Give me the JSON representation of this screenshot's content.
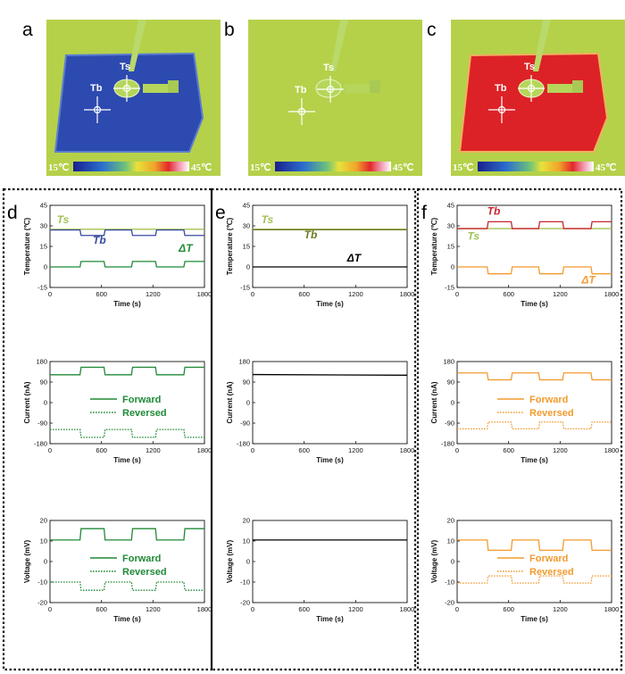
{
  "figure": {
    "top_panels": [
      {
        "letter": "a",
        "state": "cold",
        "ts_label": "Ts",
        "tb_label": "Tb",
        "cb_min": "15℃",
        "cb_max": "45℃"
      },
      {
        "letter": "b",
        "state": "neutral",
        "ts_label": "Ts",
        "tb_label": "Tb",
        "cb_min": "15℃",
        "cb_max": "45℃"
      },
      {
        "letter": "c",
        "state": "hot",
        "ts_label": "Ts",
        "tb_label": "Tb",
        "cb_min": "15℃",
        "cb_max": "45℃"
      }
    ],
    "columns": [
      {
        "letter": "d"
      },
      {
        "letter": "e"
      },
      {
        "letter": "f"
      }
    ],
    "colors": {
      "background_green": "#b5d14a",
      "cold_blue": "#2d4ab0",
      "hot_red": "#dc2226",
      "ts_line": "#a3c254",
      "tb_d": "#3849a1",
      "tb_f": "#c8252c",
      "green_dark": "#1f8a37",
      "orange": "#f29b2f",
      "olive": "#6f7a25"
    }
  },
  "chart_data": [
    {
      "id": "d-temp",
      "type": "line",
      "xlabel": "Time (s)",
      "ylabel": "Temperature (℃)",
      "xlim": [
        0,
        1800
      ],
      "ylim": [
        -15,
        45
      ],
      "xticks": [
        0,
        600,
        1200,
        1800
      ],
      "yticks": [
        -15,
        0,
        15,
        30,
        45
      ],
      "series": [
        {
          "name": "Ts",
          "color": "#a3c254",
          "values": [
            [
              0,
              27.5
            ],
            [
              1800,
              27.5
            ]
          ]
        },
        {
          "name": "Tb",
          "color": "#3849a1",
          "pattern": {
            "high": 27,
            "low": 23,
            "periods": [
              [
                0,
                350,
                "high"
              ],
              [
                350,
                630,
                "low"
              ],
              [
                630,
                950,
                "high"
              ],
              [
                950,
                1230,
                "low"
              ],
              [
                1230,
                1560,
                "high"
              ],
              [
                1560,
                1800,
                "low"
              ]
            ]
          }
        },
        {
          "name": "ΔT",
          "color": "#1f8a37",
          "pattern": {
            "high": 4,
            "low": 0,
            "periods": [
              [
                0,
                350,
                "low"
              ],
              [
                350,
                630,
                "high"
              ],
              [
                630,
                950,
                "low"
              ],
              [
                950,
                1230,
                "high"
              ],
              [
                1230,
                1560,
                "low"
              ],
              [
                1560,
                1800,
                "high"
              ]
            ]
          }
        }
      ],
      "annotations": [
        {
          "text": "Ts",
          "x": 80,
          "y": 32,
          "color": "#a3c254"
        },
        {
          "text": "Tb",
          "x": 500,
          "y": 17,
          "color": "#3849a1"
        },
        {
          "text": "ΔT",
          "x": 1500,
          "y": 11,
          "color": "#1f8a37"
        }
      ]
    },
    {
      "id": "d-current",
      "type": "line",
      "xlabel": "Time (s)",
      "ylabel": "Current (nA)",
      "xlim": [
        0,
        1800
      ],
      "ylim": [
        -180,
        180
      ],
      "xticks": [
        0,
        600,
        1200,
        1800
      ],
      "yticks": [
        -180,
        -90,
        0,
        90,
        180
      ],
      "series": [
        {
          "name": "Forward",
          "color": "#1f8a37",
          "dash": "solid",
          "pattern": {
            "high": 155,
            "low": 122,
            "periods": [
              [
                0,
                350,
                "low"
              ],
              [
                350,
                630,
                "high"
              ],
              [
                630,
                950,
                "low"
              ],
              [
                950,
                1230,
                "high"
              ],
              [
                1230,
                1560,
                "low"
              ],
              [
                1560,
                1800,
                "high"
              ]
            ]
          }
        },
        {
          "name": "Reversed",
          "color": "#1f8a37",
          "dash": "dotted",
          "pattern": {
            "high": -118,
            "low": -152,
            "periods": [
              [
                0,
                350,
                "high"
              ],
              [
                350,
                630,
                "low"
              ],
              [
                630,
                950,
                "high"
              ],
              [
                950,
                1230,
                "low"
              ],
              [
                1230,
                1560,
                "high"
              ],
              [
                1560,
                1800,
                "low"
              ]
            ]
          }
        }
      ],
      "legend": [
        "Forward",
        "Reversed"
      ]
    },
    {
      "id": "d-voltage",
      "type": "line",
      "xlabel": "Time (s)",
      "ylabel": "Voltage (mV)",
      "xlim": [
        0,
        1800
      ],
      "ylim": [
        -20,
        20
      ],
      "xticks": [
        0,
        600,
        1200,
        1800
      ],
      "yticks": [
        -20,
        -10,
        0,
        10,
        20
      ],
      "series": [
        {
          "name": "Forward",
          "color": "#1f8a37",
          "dash": "solid",
          "pattern": {
            "high": 16,
            "low": 10.5,
            "periods": [
              [
                0,
                350,
                "low"
              ],
              [
                350,
                630,
                "high"
              ],
              [
                630,
                950,
                "low"
              ],
              [
                950,
                1230,
                "high"
              ],
              [
                1230,
                1560,
                "low"
              ],
              [
                1560,
                1800,
                "high"
              ]
            ]
          }
        },
        {
          "name": "Reversed",
          "color": "#1f8a37",
          "dash": "dotted",
          "pattern": {
            "high": -10,
            "low": -14,
            "periods": [
              [
                0,
                350,
                "high"
              ],
              [
                350,
                630,
                "low"
              ],
              [
                630,
                950,
                "high"
              ],
              [
                950,
                1230,
                "low"
              ],
              [
                1230,
                1560,
                "high"
              ],
              [
                1560,
                1800,
                "low"
              ]
            ]
          }
        }
      ],
      "legend": [
        "Forward",
        "Reversed"
      ]
    },
    {
      "id": "e-temp",
      "type": "line",
      "xlabel": "Time (s)",
      "ylabel": "Temperature (℃)",
      "xlim": [
        0,
        1800
      ],
      "ylim": [
        -15,
        45
      ],
      "xticks": [
        0,
        600,
        1200,
        1800
      ],
      "yticks": [
        -15,
        0,
        15,
        30,
        45
      ],
      "series": [
        {
          "name": "Ts",
          "color": "#a3c254",
          "values": [
            [
              0,
              27.5
            ],
            [
              1800,
              27.5
            ]
          ]
        },
        {
          "name": "Tb",
          "color": "#6f7a25",
          "values": [
            [
              0,
              27.2
            ],
            [
              1800,
              27.2
            ]
          ]
        },
        {
          "name": "ΔT",
          "color": "#000000",
          "values": [
            [
              0,
              0
            ],
            [
              1800,
              0
            ]
          ]
        }
      ],
      "annotations": [
        {
          "text": "Ts",
          "x": 100,
          "y": 32,
          "color": "#a3c254"
        },
        {
          "text": "Tb",
          "x": 600,
          "y": 21,
          "color": "#6f7a25"
        },
        {
          "text": "ΔT",
          "x": 1100,
          "y": 4,
          "color": "#000000"
        }
      ]
    },
    {
      "id": "e-current",
      "type": "line",
      "xlabel": "Time (s)",
      "ylabel": "Current (nA)",
      "xlim": [
        0,
        1800
      ],
      "ylim": [
        -180,
        180
      ],
      "xticks": [
        0,
        600,
        1200,
        1800
      ],
      "yticks": [
        -180,
        -90,
        0,
        90,
        180
      ],
      "series": [
        {
          "name": "Current",
          "color": "#000000",
          "values": [
            [
              0,
              123
            ],
            [
              1800,
              120
            ]
          ]
        }
      ]
    },
    {
      "id": "e-voltage",
      "type": "line",
      "xlabel": "Time (s)",
      "ylabel": "Voltage (mV)",
      "xlim": [
        0,
        1800
      ],
      "ylim": [
        -20,
        20
      ],
      "xticks": [
        0,
        600,
        1200,
        1800
      ],
      "yticks": [
        -20,
        -10,
        0,
        10,
        20
      ],
      "series": [
        {
          "name": "Voltage",
          "color": "#000000",
          "values": [
            [
              0,
              10.5
            ],
            [
              1800,
              10.5
            ]
          ]
        }
      ]
    },
    {
      "id": "f-temp",
      "type": "line",
      "xlabel": "Time (s)",
      "ylabel": "Temperature (℃)",
      "xlim": [
        0,
        1800
      ],
      "ylim": [
        -15,
        45
      ],
      "xticks": [
        0,
        600,
        1200,
        1800
      ],
      "yticks": [
        -15,
        0,
        15,
        30,
        45
      ],
      "series": [
        {
          "name": "Ts",
          "color": "#a3c254",
          "values": [
            [
              0,
              28
            ],
            [
              1800,
              28
            ]
          ]
        },
        {
          "name": "Tb",
          "color": "#c8252c",
          "pattern": {
            "high": 33,
            "low": 28,
            "periods": [
              [
                0,
                350,
                "low"
              ],
              [
                350,
                630,
                "high"
              ],
              [
                630,
                950,
                "low"
              ],
              [
                950,
                1230,
                "high"
              ],
              [
                1230,
                1560,
                "low"
              ],
              [
                1560,
                1800,
                "high"
              ]
            ]
          }
        },
        {
          "name": "ΔT",
          "color": "#f29b2f",
          "pattern": {
            "high": 0,
            "low": -5,
            "periods": [
              [
                0,
                350,
                "high"
              ],
              [
                350,
                630,
                "low"
              ],
              [
                630,
                950,
                "high"
              ],
              [
                950,
                1230,
                "low"
              ],
              [
                1230,
                1560,
                "high"
              ],
              [
                1560,
                1800,
                "low"
              ]
            ]
          }
        }
      ],
      "annotations": [
        {
          "text": "Tb",
          "x": 350,
          "y": 38,
          "color": "#c8252c"
        },
        {
          "text": "Ts",
          "x": 120,
          "y": 20,
          "color": "#a3c254"
        },
        {
          "text": "ΔT",
          "x": 1450,
          "y": -12,
          "color": "#f29b2f"
        }
      ]
    },
    {
      "id": "f-current",
      "type": "line",
      "xlabel": "Time (s)",
      "ylabel": "Current (nA)",
      "xlim": [
        0,
        1800
      ],
      "ylim": [
        -180,
        180
      ],
      "xticks": [
        0,
        600,
        1200,
        1800
      ],
      "yticks": [
        -180,
        -90,
        0,
        90,
        180
      ],
      "series": [
        {
          "name": "Forward",
          "color": "#f29b2f",
          "dash": "solid",
          "pattern": {
            "high": 130,
            "low": 100,
            "periods": [
              [
                0,
                350,
                "high"
              ],
              [
                350,
                630,
                "low"
              ],
              [
                630,
                950,
                "high"
              ],
              [
                950,
                1230,
                "low"
              ],
              [
                1230,
                1560,
                "high"
              ],
              [
                1560,
                1800,
                "low"
              ]
            ]
          }
        },
        {
          "name": "Reversed",
          "color": "#f29b2f",
          "dash": "dotted",
          "pattern": {
            "high": -85,
            "low": -115,
            "periods": [
              [
                0,
                350,
                "low"
              ],
              [
                350,
                630,
                "high"
              ],
              [
                630,
                950,
                "low"
              ],
              [
                950,
                1230,
                "high"
              ],
              [
                1230,
                1560,
                "low"
              ],
              [
                1560,
                1800,
                "high"
              ]
            ]
          }
        }
      ],
      "legend": [
        "Forward",
        "Reversed"
      ]
    },
    {
      "id": "f-voltage",
      "type": "line",
      "xlabel": "Time (s)",
      "ylabel": "Voltage (mV)",
      "xlim": [
        0,
        1800
      ],
      "ylim": [
        -20,
        20
      ],
      "xticks": [
        0,
        600,
        1200,
        1800
      ],
      "yticks": [
        -20,
        -10,
        0,
        10,
        20
      ],
      "series": [
        {
          "name": "Forward",
          "color": "#f29b2f",
          "dash": "solid",
          "pattern": {
            "high": 10.5,
            "low": 5.5,
            "periods": [
              [
                0,
                350,
                "high"
              ],
              [
                350,
                630,
                "low"
              ],
              [
                630,
                950,
                "high"
              ],
              [
                950,
                1230,
                "low"
              ],
              [
                1230,
                1560,
                "high"
              ],
              [
                1560,
                1800,
                "low"
              ]
            ]
          }
        },
        {
          "name": "Reversed",
          "color": "#f29b2f",
          "dash": "dotted",
          "pattern": {
            "high": -7,
            "low": -10.5,
            "periods": [
              [
                0,
                350,
                "low"
              ],
              [
                350,
                630,
                "high"
              ],
              [
                630,
                950,
                "low"
              ],
              [
                950,
                1230,
                "high"
              ],
              [
                1230,
                1560,
                "low"
              ],
              [
                1560,
                1800,
                "high"
              ]
            ]
          }
        }
      ],
      "legend": [
        "Forward",
        "Reversed"
      ]
    }
  ]
}
